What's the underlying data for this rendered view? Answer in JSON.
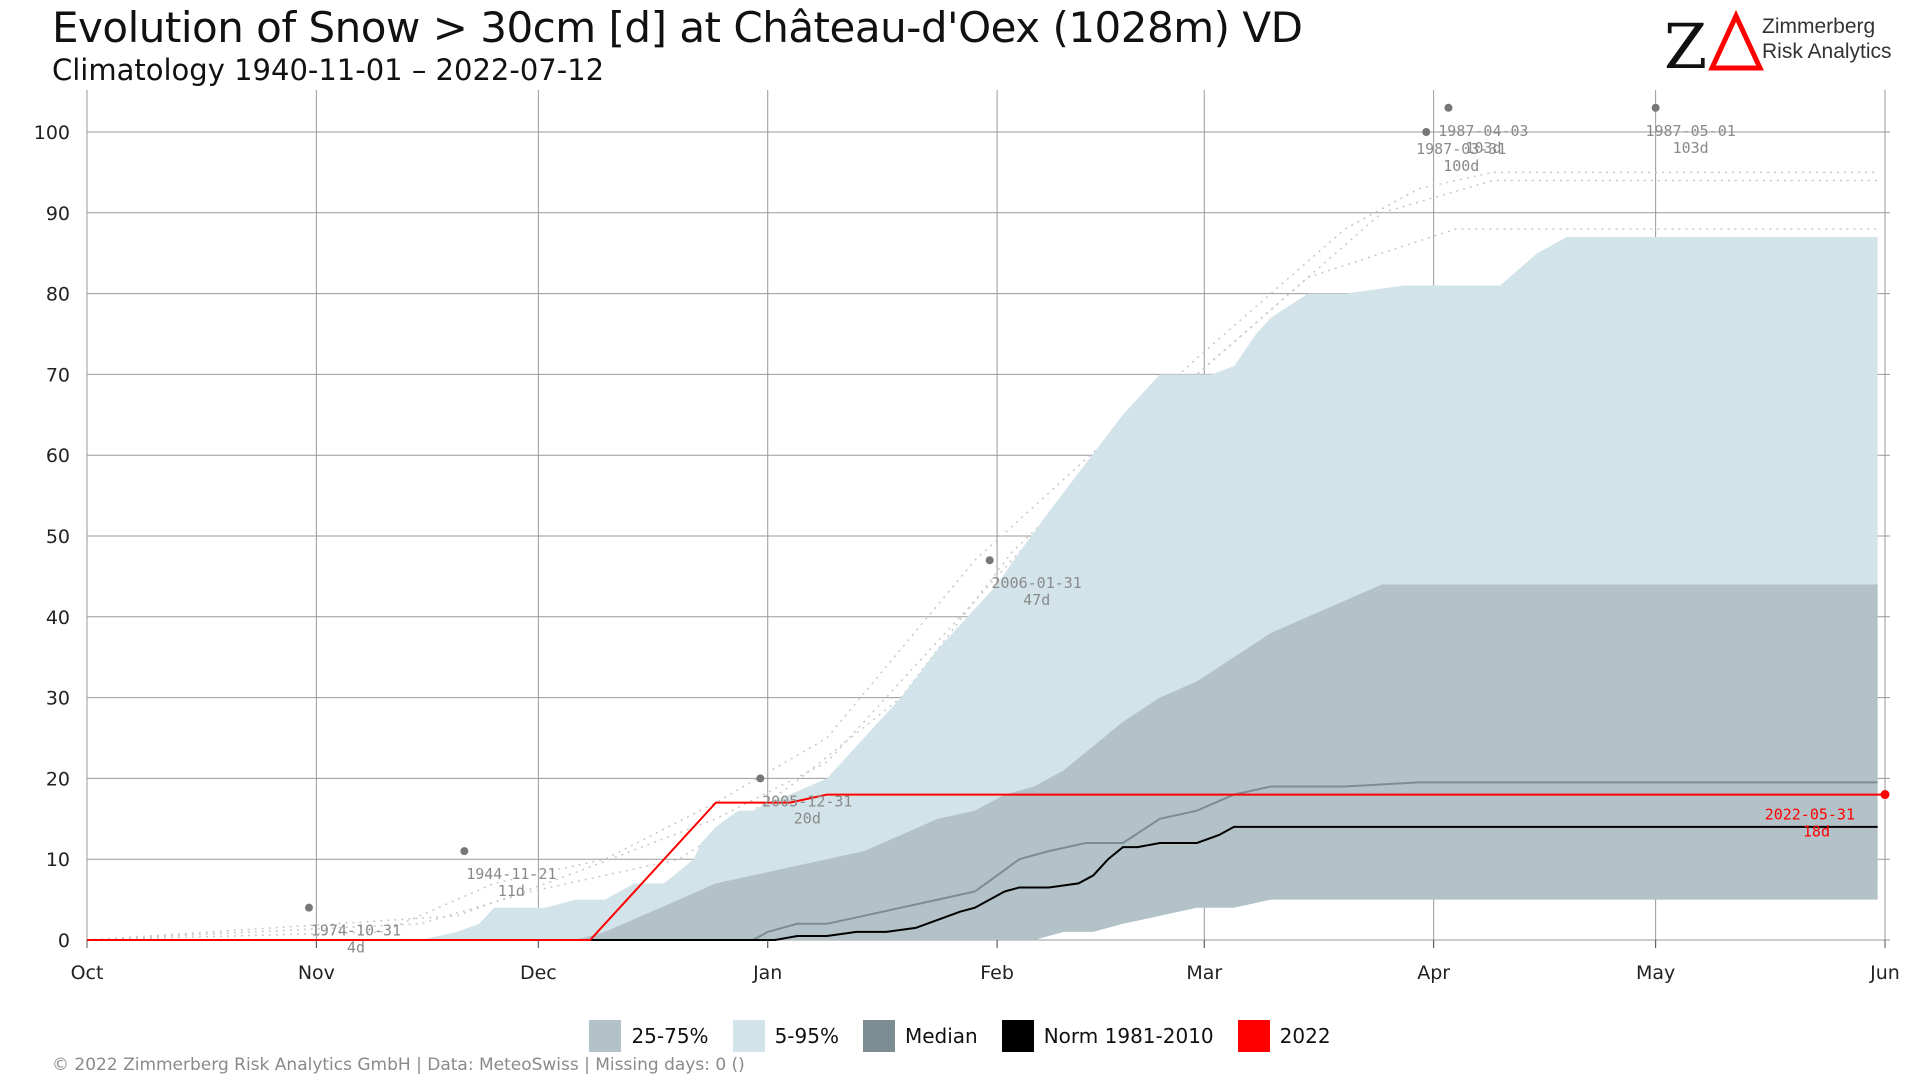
{
  "header": {
    "title": "Evolution of Snow > 30cm [d] at Château-d'Oex (1028m) VD",
    "subtitle": "Climatology 1940-11-01 – 2022-07-12"
  },
  "logo": {
    "text_line1": "Zimmerberg",
    "text_line2": "Risk Analytics",
    "colors": {
      "z": "#111111",
      "delta": "#ff0000"
    }
  },
  "footer": {
    "text": "©  2022 Zimmerberg Risk Analytics GmbH | Data: MeteoSwiss | Missing days: 0 ()"
  },
  "legend": [
    {
      "label": "25-75%",
      "color": "#b2c2c8"
    },
    {
      "label": "5-95%",
      "color": "#d2e3e9"
    },
    {
      "label": "Median",
      "color": "#7b8d93"
    },
    {
      "label": "Norm 1981-2010",
      "color": "#000000"
    },
    {
      "label": "2022",
      "color": "#ff0000"
    }
  ],
  "chart_data": {
    "type": "area",
    "x_unit": "days since Oct 1",
    "xlim": [
      0,
      243
    ],
    "ylim": [
      0,
      100
    ],
    "x_ticks": [
      {
        "label": "Oct",
        "x": 0
      },
      {
        "label": "Nov",
        "x": 31
      },
      {
        "label": "Dec",
        "x": 61
      },
      {
        "label": "Jan",
        "x": 92
      },
      {
        "label": "Feb",
        "x": 123
      },
      {
        "label": "Mar",
        "x": 151
      },
      {
        "label": "Apr",
        "x": 182
      },
      {
        "label": "May",
        "x": 212
      },
      {
        "label": "Jun",
        "x": 243
      }
    ],
    "y_ticks": [
      0,
      10,
      20,
      30,
      40,
      50,
      60,
      70,
      80,
      90,
      100
    ],
    "grid": true,
    "series": [
      {
        "name": "5-95%",
        "type": "band",
        "color": "#d2e3e9",
        "x": [
          0,
          45,
          50,
          53,
          55,
          60,
          62,
          66,
          68,
          70,
          74,
          78,
          82,
          83,
          85,
          88,
          90,
          92,
          95,
          100,
          103,
          105,
          110,
          115,
          120,
          123,
          126,
          130,
          135,
          140,
          145,
          150,
          152,
          155,
          158,
          160,
          165,
          170,
          178,
          182,
          186,
          188,
          191,
          196,
          200,
          205,
          210,
          215,
          220,
          225,
          230,
          235,
          240,
          242
        ],
        "upper": [
          0,
          0,
          1,
          2,
          4,
          4,
          4,
          5,
          5,
          5,
          7,
          7,
          10,
          12,
          14,
          16,
          16,
          17,
          18,
          20,
          23,
          25,
          30,
          36,
          41,
          44,
          48,
          53,
          59,
          65,
          70,
          70,
          70,
          71,
          75,
          77,
          80,
          80,
          81,
          81,
          81,
          81,
          81,
          85,
          87,
          87,
          87,
          87,
          87,
          87,
          87,
          87,
          87,
          87
        ],
        "lower": [
          0,
          0,
          0,
          0,
          0,
          0,
          0,
          0,
          0,
          0,
          0,
          0,
          0,
          0,
          0,
          0,
          0,
          0,
          0,
          0,
          0,
          0,
          0,
          0,
          0,
          0,
          0,
          1,
          2,
          2,
          3,
          5,
          6,
          6,
          7,
          7,
          7,
          7,
          7,
          7,
          7,
          7,
          7,
          7,
          7,
          7,
          7,
          7,
          7,
          7,
          7,
          7,
          7,
          7
        ]
      },
      {
        "name": "25-75%",
        "type": "band",
        "color": "#b2c2c8",
        "x": [
          0,
          66,
          70,
          75,
          80,
          85,
          90,
          95,
          100,
          105,
          110,
          115,
          120,
          124,
          128,
          132,
          136,
          140,
          145,
          150,
          155,
          160,
          165,
          170,
          175,
          180,
          190,
          200,
          210,
          220,
          230,
          242
        ],
        "upper": [
          0,
          0,
          1,
          3,
          5,
          7,
          8,
          9,
          10,
          11,
          13,
          15,
          16,
          18,
          19,
          21,
          24,
          27,
          30,
          32,
          35,
          38,
          40,
          42,
          44,
          44,
          44,
          44,
          44,
          44,
          44,
          44
        ],
        "lower": [
          0,
          0,
          0,
          0,
          0,
          0,
          0,
          0,
          0,
          0,
          0,
          0,
          0,
          0,
          0,
          1,
          1,
          2,
          3,
          4,
          4,
          5,
          5,
          5,
          5,
          5,
          5,
          5,
          5,
          5,
          5,
          5
        ]
      },
      {
        "name": "Median",
        "type": "line",
        "color": "#7b8d93",
        "x": [
          0,
          90,
          92,
          96,
          100,
          105,
          110,
          115,
          120,
          123,
          126,
          130,
          135,
          140,
          145,
          150,
          155,
          160,
          165,
          170,
          180,
          190,
          200,
          210,
          220,
          230,
          242
        ],
        "values": [
          0,
          0,
          1,
          2,
          2,
          3,
          4,
          5,
          6,
          8,
          10,
          11,
          12,
          12,
          15,
          16,
          18,
          19,
          19,
          19,
          19.5,
          19.5,
          19.5,
          19.5,
          19.5,
          19.5,
          19.5
        ]
      },
      {
        "name": "Norm 1981-2010",
        "type": "line",
        "color": "#000000",
        "x": [
          0,
          93,
          96,
          100,
          104,
          108,
          112,
          115,
          118,
          120,
          122,
          124,
          126,
          130,
          134,
          136,
          138,
          140,
          142,
          145,
          150,
          153,
          155,
          160,
          170,
          180,
          190,
          200,
          210,
          220,
          230,
          242
        ],
        "values": [
          0,
          0,
          0.5,
          0.5,
          1,
          1,
          1.5,
          2.5,
          3.5,
          4,
          5,
          6,
          6.5,
          6.5,
          7,
          8,
          10,
          11.5,
          11.5,
          12,
          12,
          13,
          14,
          14,
          14,
          14,
          14,
          14,
          14,
          14,
          14,
          14
        ]
      },
      {
        "name": "2022",
        "type": "line",
        "color": "#ff0000",
        "x": [
          0,
          68,
          85,
          92,
          93,
          95,
          100,
          120,
          150,
          180,
          210,
          243
        ],
        "values": [
          0,
          0,
          17,
          17,
          17,
          17,
          18,
          18,
          18,
          18,
          18,
          18
        ]
      }
    ],
    "record_points": [
      {
        "x": 30,
        "y": 4,
        "date": "1974-10-31",
        "value": "4d"
      },
      {
        "x": 51,
        "y": 11,
        "date": "1944-11-21",
        "value": "11d"
      },
      {
        "x": 91,
        "y": 20,
        "date": "2005-12-31",
        "value": "20d"
      },
      {
        "x": 122,
        "y": 47,
        "date": "2006-01-31",
        "value": "47d"
      },
      {
        "x": 181,
        "y": 100,
        "date": "1987-03-31",
        "value": "100d"
      },
      {
        "x": 184,
        "y": 103,
        "date": "1987-04-03",
        "value": "103d"
      },
      {
        "x": 212,
        "y": 103,
        "date": "1987-05-01",
        "value": "103d"
      }
    ],
    "current_point": {
      "x": 243,
      "y": 18,
      "date": "2022-05-31",
      "value": "18d"
    }
  }
}
